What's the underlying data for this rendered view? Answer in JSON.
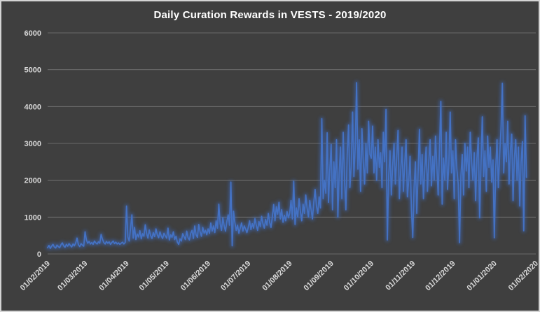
{
  "window": {
    "background_color": "#3F3F3F",
    "border_color": "#D4D4D4"
  },
  "chart_data": {
    "type": "line",
    "title": "Daily Curation Rewards in VESTS - 2019/2020",
    "title_color": "#FFFFFF",
    "legend": "none",
    "grid": "horizontal",
    "line_color": "#4472C4",
    "glow_color": "#3E6CC5",
    "gridline_color": "#7A7A7A",
    "label_color": "#D9D9D9",
    "ylim": [
      0,
      6000
    ],
    "ytick_interval": 1000,
    "yticks": [
      0,
      1000,
      2000,
      3000,
      4000,
      5000,
      6000
    ],
    "x_unit": "day",
    "x_total_days": 365,
    "x_tick_labels": [
      "01/02/2019",
      "01/03/2019",
      "01/04/2019",
      "01/05/2019",
      "01/06/2019",
      "01/07/2019",
      "01/08/2019",
      "01/09/2019",
      "01/10/2019",
      "01/11/2019",
      "01/12/2019",
      "01/01/2020",
      "01/02/2020"
    ],
    "x_tick_positions_days": [
      0,
      28,
      59,
      89,
      120,
      150,
      181,
      212,
      242,
      273,
      303,
      334,
      365
    ],
    "x_label_rotation_deg": -45,
    "values_start_day": 0,
    "values": [
      170,
      230,
      150,
      210,
      260,
      190,
      160,
      240,
      200,
      170,
      250,
      300,
      220,
      180,
      260,
      210,
      280,
      230,
      190,
      270,
      220,
      300,
      430,
      250,
      200,
      280,
      240,
      210,
      600,
      380,
      290,
      340,
      270,
      310,
      260,
      350,
      300,
      270,
      330,
      290,
      530,
      400,
      310,
      270,
      340,
      290,
      330,
      260,
      310,
      350,
      280,
      320,
      270,
      300,
      260,
      290,
      320,
      270,
      310,
      1300,
      460,
      350,
      700,
      1060,
      430,
      720,
      390,
      540,
      460,
      630,
      410,
      550,
      480,
      790,
      560,
      430,
      650,
      500,
      420,
      580,
      470,
      680,
      520,
      440,
      600,
      480,
      420,
      560,
      490,
      430,
      700,
      380,
      520,
      450,
      600,
      390,
      480,
      320,
      260,
      410,
      350,
      550,
      470,
      390,
      620,
      440,
      380,
      560,
      640,
      420,
      760,
      520,
      450,
      800,
      600,
      480,
      720,
      560,
      640,
      520,
      680,
      560,
      840,
      620,
      760,
      580,
      900,
      700,
      1350,
      820,
      640,
      980,
      760,
      620,
      880,
      1060,
      780,
      1950,
      220,
      1160,
      850,
      640,
      780,
      560,
      700,
      840,
      620,
      760,
      680,
      580,
      720,
      900,
      660,
      820,
      700,
      960,
      780,
      640,
      880,
      740,
      1020,
      820,
      700,
      940,
      780,
      1100,
      860,
      720,
      1000,
      1340,
      900,
      1280,
      1080,
      1400,
      950,
      1200,
      860,
      1050,
      900,
      1150,
      980,
      1100,
      1450,
      950,
      1970,
      800,
      1250,
      1000,
      1500,
      1150,
      900,
      1350,
      1100,
      1600,
      1250,
      1000,
      1450,
      1200,
      950,
      1400,
      1750,
      1300,
      1100,
      1550,
      1250,
      3670,
      1500,
      2000,
      1650,
      3290,
      1400,
      2300,
      2970,
      1200,
      2500,
      1800,
      3100,
      1000,
      2200,
      2900,
      1500,
      3300,
      2000,
      1200,
      2700,
      3500,
      1800,
      2400,
      3850,
      2100,
      2900,
      4650,
      2300,
      3100,
      1700,
      3400,
      2500,
      1900,
      3000,
      2200,
      3600,
      2700,
      2600,
      3470,
      2200,
      2900,
      2000,
      3100,
      2350,
      2750,
      1800,
      3300,
      2500,
      3920,
      380,
      2100,
      2800,
      1600,
      2400,
      3000,
      1900,
      2600,
      3350,
      1500,
      2250,
      2900,
      1700,
      2450,
      3100,
      1550,
      2000,
      2650,
      1200,
      450,
      1800,
      2500,
      1100,
      2200,
      3380,
      1900,
      2700,
      1500,
      2300,
      2900,
      1700,
      2500,
      3100,
      1850,
      2650,
      2000,
      3200,
      2400,
      1600,
      2850,
      4140,
      1350,
      2600,
      2000,
      3300,
      1750,
      2450,
      3850,
      2200,
      2800,
      1500,
      3100,
      2300,
      1900,
      310,
      2100,
      2700,
      1600,
      3000,
      2250,
      2900,
      1800,
      3300,
      2500,
      2000,
      2750,
      1450,
      2600,
      3150,
      980,
      2400,
      3720,
      2100,
      2800,
      1700,
      3200,
      2350,
      2900,
      1950,
      2550,
      440,
      2300,
      3100,
      1800,
      2700,
      3400,
      4630,
      2200,
      3000,
      2500,
      3600,
      1900,
      2800,
      3250,
      1450,
      2600,
      3100,
      2000,
      2900,
      1300,
      2500,
      3050,
      630,
      3750,
      2080
    ]
  }
}
